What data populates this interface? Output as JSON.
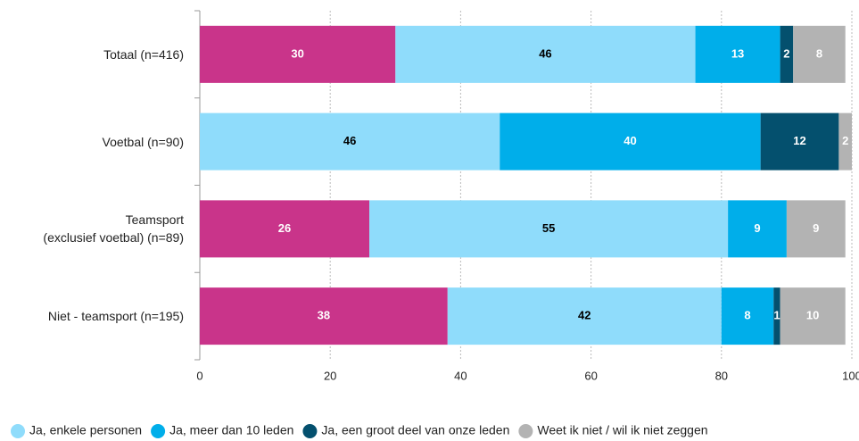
{
  "chart_data": {
    "type": "stacked_bar_horizontal",
    "categories": [
      "Totaal (n=416)",
      "Voetbal (n=90)",
      "Teamsport\n(exclusief voetbal) (n=89)",
      "Niet - teamsport (n=195)"
    ],
    "series": [
      {
        "color": "#c9348a",
        "label_color": "#ffffff",
        "values": [
          30,
          null,
          26,
          38
        ]
      },
      {
        "name": "Ja, enkele personen",
        "color": "#8fdcfb",
        "label_color": "#000000",
        "values": [
          46,
          46,
          55,
          42
        ]
      },
      {
        "name": "Ja, meer dan 10 leden",
        "color": "#00aeea",
        "label_color": "#ffffff",
        "values": [
          13,
          40,
          9,
          8
        ]
      },
      {
        "name": "Ja, een groot deel van onze leden",
        "color": "#04506e",
        "label_color": "#ffffff",
        "values": [
          2,
          12,
          null,
          1
        ]
      },
      {
        "name": "Weet ik niet / wil ik niet zeggen",
        "color": "#b3b3b3",
        "label_color": "#ffffff",
        "values": [
          8,
          2,
          9,
          10
        ]
      }
    ],
    "xlim": [
      0,
      100
    ],
    "xticks": [
      0,
      20,
      40,
      60,
      80,
      100
    ],
    "grid": true,
    "legend": "bottom"
  }
}
